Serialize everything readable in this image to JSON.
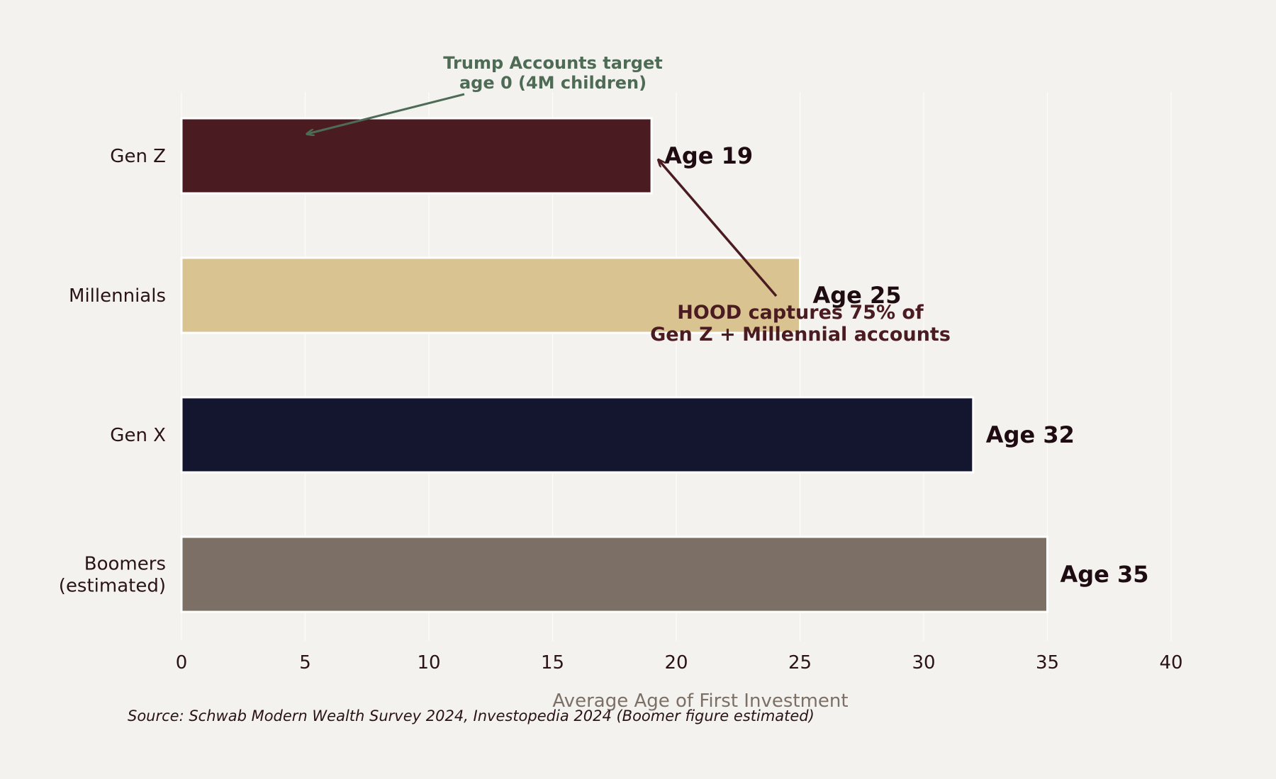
{
  "chart_data": {
    "type": "bar",
    "orientation": "horizontal",
    "categories": [
      "Gen Z",
      "Millennials",
      "Gen X",
      "Boomers (estimated)"
    ],
    "category_lines": [
      [
        "Gen Z"
      ],
      [
        "Millennials"
      ],
      [
        "Gen X"
      ],
      [
        "Boomers",
        "(estimated)"
      ]
    ],
    "values": [
      19,
      25,
      32,
      35
    ],
    "value_labels": [
      "Age 19",
      "Age 25",
      "Age 32",
      "Age 35"
    ],
    "colors": [
      "#4a1b20",
      "#d9c391",
      "#141630",
      "#7b6f66"
    ],
    "xlabel": "Average Age of First Investment",
    "xlim": [
      0,
      40
    ],
    "xticks": [
      0,
      5,
      10,
      15,
      20,
      25,
      30,
      35,
      40
    ],
    "grid": true,
    "annotations": [
      {
        "lines": [
          "Trump Accounts target",
          "age 0 (4M children)"
        ],
        "color": "#4e6b55",
        "points_to": {
          "x": 5,
          "category": "Gen Z"
        }
      },
      {
        "lines": [
          "HOOD captures 75% of",
          "Gen Z + Millennial accounts"
        ],
        "color": "#4a1b20",
        "points_to": {
          "x": 19,
          "category": "Gen Z"
        }
      }
    ],
    "source": "Source: Schwab Modern Wealth Survey 2024, Investopedia 2024 (Boomer figure estimated)"
  }
}
